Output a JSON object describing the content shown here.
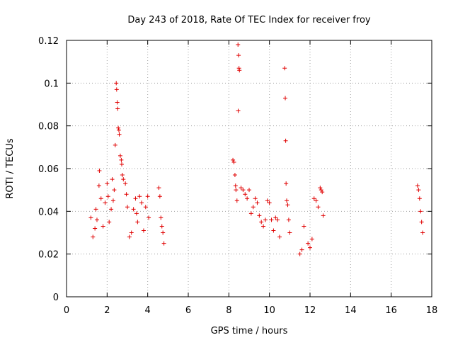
{
  "chart_data": {
    "type": "scatter",
    "title": "Day 243 of 2018, Rate Of TEC Index for receiver froy",
    "xlabel": "GPS time / hours",
    "ylabel": "ROTI / TECUs",
    "xlim": [
      0,
      18
    ],
    "ylim": [
      0,
      0.12
    ],
    "x_ticks": [
      0,
      2,
      4,
      6,
      8,
      10,
      12,
      14,
      16,
      18
    ],
    "y_ticks": [
      0,
      0.02,
      0.04,
      0.06,
      0.08,
      0.1,
      0.12
    ],
    "x_tick_labels": [
      "0",
      "2",
      "4",
      "6",
      "8",
      "10",
      "12",
      "14",
      "16",
      "18"
    ],
    "y_tick_labels": [
      "0",
      "0.02",
      "0.04",
      "0.06",
      "0.08",
      "0.1",
      "0.12"
    ],
    "grid": true,
    "marker": "+",
    "color": "#e00000",
    "series": [
      {
        "name": "ROTI",
        "points": [
          [
            1.2,
            0.037
          ],
          [
            1.3,
            0.028
          ],
          [
            1.4,
            0.032
          ],
          [
            1.45,
            0.041
          ],
          [
            1.5,
            0.036
          ],
          [
            1.6,
            0.052
          ],
          [
            1.62,
            0.059
          ],
          [
            1.7,
            0.046
          ],
          [
            1.8,
            0.033
          ],
          [
            1.9,
            0.044
          ],
          [
            2.0,
            0.053
          ],
          [
            2.05,
            0.047
          ],
          [
            2.1,
            0.035
          ],
          [
            2.2,
            0.041
          ],
          [
            2.25,
            0.055
          ],
          [
            2.3,
            0.045
          ],
          [
            2.35,
            0.05
          ],
          [
            2.4,
            0.071
          ],
          [
            2.45,
            0.1
          ],
          [
            2.47,
            0.097
          ],
          [
            2.5,
            0.091
          ],
          [
            2.52,
            0.088
          ],
          [
            2.55,
            0.079
          ],
          [
            2.58,
            0.078
          ],
          [
            2.6,
            0.076
          ],
          [
            2.65,
            0.066
          ],
          [
            2.7,
            0.064
          ],
          [
            2.72,
            0.062
          ],
          [
            2.75,
            0.057
          ],
          [
            2.8,
            0.055
          ],
          [
            2.9,
            0.053
          ],
          [
            2.95,
            0.048
          ],
          [
            3.0,
            0.042
          ],
          [
            3.1,
            0.028
          ],
          [
            3.2,
            0.03
          ],
          [
            3.3,
            0.041
          ],
          [
            3.4,
            0.046
          ],
          [
            3.45,
            0.039
          ],
          [
            3.5,
            0.035
          ],
          [
            3.6,
            0.047
          ],
          [
            3.7,
            0.044
          ],
          [
            3.8,
            0.031
          ],
          [
            3.9,
            0.042
          ],
          [
            4.0,
            0.047
          ],
          [
            4.05,
            0.037
          ],
          [
            4.55,
            0.051
          ],
          [
            4.6,
            0.047
          ],
          [
            4.65,
            0.037
          ],
          [
            4.7,
            0.033
          ],
          [
            4.75,
            0.03
          ],
          [
            4.8,
            0.025
          ],
          [
            8.2,
            0.064
          ],
          [
            8.25,
            0.063
          ],
          [
            8.3,
            0.057
          ],
          [
            8.33,
            0.052
          ],
          [
            8.35,
            0.05
          ],
          [
            8.4,
            0.045
          ],
          [
            8.45,
            0.118
          ],
          [
            8.48,
            0.113
          ],
          [
            8.5,
            0.107
          ],
          [
            8.52,
            0.106
          ],
          [
            8.46,
            0.087
          ],
          [
            8.6,
            0.051
          ],
          [
            8.7,
            0.05
          ],
          [
            8.8,
            0.048
          ],
          [
            8.9,
            0.046
          ],
          [
            9.0,
            0.05
          ],
          [
            9.1,
            0.039
          ],
          [
            9.2,
            0.042
          ],
          [
            9.3,
            0.046
          ],
          [
            9.4,
            0.044
          ],
          [
            9.5,
            0.038
          ],
          [
            9.6,
            0.035
          ],
          [
            9.7,
            0.033
          ],
          [
            9.8,
            0.036
          ],
          [
            9.9,
            0.045
          ],
          [
            10.0,
            0.044
          ],
          [
            10.1,
            0.036
          ],
          [
            10.2,
            0.031
          ],
          [
            10.3,
            0.037
          ],
          [
            10.4,
            0.036
          ],
          [
            10.5,
            0.028
          ],
          [
            10.75,
            0.107
          ],
          [
            10.78,
            0.093
          ],
          [
            10.8,
            0.073
          ],
          [
            10.82,
            0.053
          ],
          [
            10.85,
            0.045
          ],
          [
            10.9,
            0.043
          ],
          [
            10.95,
            0.036
          ],
          [
            11.0,
            0.03
          ],
          [
            11.5,
            0.02
          ],
          [
            11.6,
            0.022
          ],
          [
            11.7,
            0.033
          ],
          [
            11.9,
            0.025
          ],
          [
            12.0,
            0.023
          ],
          [
            12.1,
            0.027
          ],
          [
            12.2,
            0.046
          ],
          [
            12.3,
            0.045
          ],
          [
            12.4,
            0.042
          ],
          [
            12.5,
            0.051
          ],
          [
            12.55,
            0.05
          ],
          [
            12.6,
            0.049
          ],
          [
            12.65,
            0.038
          ],
          [
            17.3,
            0.052
          ],
          [
            17.35,
            0.05
          ],
          [
            17.4,
            0.046
          ],
          [
            17.45,
            0.04
          ],
          [
            17.5,
            0.035
          ],
          [
            17.55,
            0.03
          ]
        ]
      }
    ]
  }
}
